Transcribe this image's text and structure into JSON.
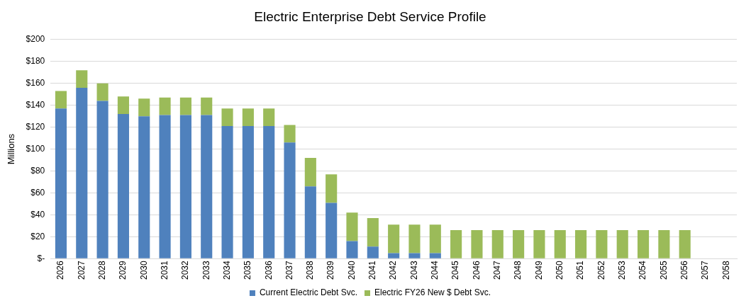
{
  "chart_data": {
    "type": "bar",
    "title": "Electric Enterprise Debt Service Profile",
    "ylabel": "Millions",
    "categories": [
      "2026",
      "2027",
      "2028",
      "2029",
      "2030",
      "2031",
      "2032",
      "2033",
      "2034",
      "2035",
      "2036",
      "2037",
      "2038",
      "2039",
      "2040",
      "2041",
      "2042",
      "2043",
      "2044",
      "2045",
      "2046",
      "2047",
      "2048",
      "2049",
      "2050",
      "2051",
      "2052",
      "2053",
      "2054",
      "2055",
      "2056",
      "2057",
      "2058"
    ],
    "stacked": true,
    "grid": "y",
    "legend": "bottom",
    "ylim": [
      0,
      200
    ],
    "yticks": [
      {
        "value": 0,
        "label": "$-"
      },
      {
        "value": 20,
        "label": "$20"
      },
      {
        "value": 40,
        "label": "$40"
      },
      {
        "value": 60,
        "label": "$60"
      },
      {
        "value": 80,
        "label": "$80"
      },
      {
        "value": 100,
        "label": "$100"
      },
      {
        "value": 120,
        "label": "$120"
      },
      {
        "value": 140,
        "label": "$140"
      },
      {
        "value": 160,
        "label": "$160"
      },
      {
        "value": 180,
        "label": "$180"
      },
      {
        "value": 200,
        "label": "$200"
      }
    ],
    "series": [
      {
        "name": "Current Electric Debt Svc.",
        "color": "#4f81bd",
        "values": [
          137,
          156,
          144,
          132,
          130,
          131,
          131,
          131,
          121,
          121,
          121,
          106,
          66,
          51,
          16,
          11,
          5,
          5,
          5,
          0,
          0,
          0,
          0,
          0,
          0,
          0,
          0,
          0,
          0,
          0,
          0,
          0,
          0
        ]
      },
      {
        "name": "Electric FY26 New $ Debt Svc.",
        "color": "#9bbb59",
        "values": [
          16,
          16,
          16,
          16,
          16,
          16,
          16,
          16,
          16,
          16,
          16,
          16,
          26,
          26,
          26,
          26,
          26,
          26,
          26,
          26,
          26,
          26,
          26,
          26,
          26,
          26,
          26,
          26,
          26,
          26,
          26,
          0,
          0
        ]
      }
    ]
  }
}
